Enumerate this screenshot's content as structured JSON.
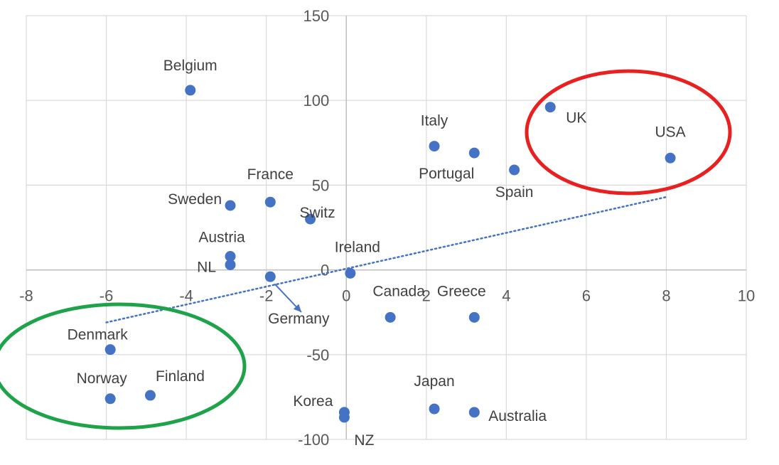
{
  "chart_data": {
    "type": "scatter",
    "title": "",
    "xlabel": "",
    "ylabel": "",
    "xlim": [
      -8,
      10
    ],
    "ylim": [
      -100,
      150
    ],
    "x_ticks": [
      "-8",
      "-6",
      "-4",
      "-2",
      "0",
      "2",
      "4",
      "6",
      "8",
      "10"
    ],
    "y_ticks": [
      "150",
      "100",
      "50",
      "0",
      "-50",
      "-100"
    ],
    "grid": true,
    "point_color": "#4472C4",
    "trendline": {
      "style": "dotted",
      "color": "#4472C4",
      "from": [
        -6,
        -31
      ],
      "to": [
        8,
        43
      ]
    },
    "points": [
      {
        "label": "Belgium",
        "x": -3.9,
        "y": 106
      },
      {
        "label": "UK",
        "x": 5.1,
        "y": 96
      },
      {
        "label": "Italy",
        "x": 2.2,
        "y": 73
      },
      {
        "label": "Portugal",
        "x": 3.2,
        "y": 69
      },
      {
        "label": "USA",
        "x": 8.1,
        "y": 66
      },
      {
        "label": "Spain",
        "x": 4.2,
        "y": 59
      },
      {
        "label": "France",
        "x": -1.9,
        "y": 40
      },
      {
        "label": "Sweden",
        "x": -2.9,
        "y": 38
      },
      {
        "label": "Switz",
        "x": -0.9,
        "y": 30
      },
      {
        "label": "Austria",
        "x": -2.9,
        "y": 8
      },
      {
        "label": "NL",
        "x": -2.9,
        "y": 3
      },
      {
        "label": "Ireland",
        "x": 0.1,
        "y": -2
      },
      {
        "label": "Germany",
        "x": -1.9,
        "y": -4
      },
      {
        "label": "Canada",
        "x": 1.1,
        "y": -28
      },
      {
        "label": "Greece",
        "x": 3.2,
        "y": -28
      },
      {
        "label": "Denmark",
        "x": -5.9,
        "y": -47
      },
      {
        "label": "Finland",
        "x": -4.9,
        "y": -74
      },
      {
        "label": "Norway",
        "x": -5.9,
        "y": -76
      },
      {
        "label": "Japan",
        "x": 2.2,
        "y": -82
      },
      {
        "label": "Australia",
        "x": 3.2,
        "y": -84
      },
      {
        "label": "Korea",
        "x": -0.05,
        "y": -84
      },
      {
        "label": "NZ",
        "x": -0.05,
        "y": -87
      }
    ],
    "annotations": [
      {
        "shape": "ellipse",
        "color": "#E8201F",
        "encloses": [
          "UK",
          "USA"
        ]
      },
      {
        "shape": "ellipse",
        "color": "#1FA34A",
        "encloses": [
          "Denmark",
          "Norway",
          "Finland"
        ]
      },
      {
        "shape": "arrow",
        "color": "#4472C4",
        "points_to": "Germany"
      }
    ]
  }
}
